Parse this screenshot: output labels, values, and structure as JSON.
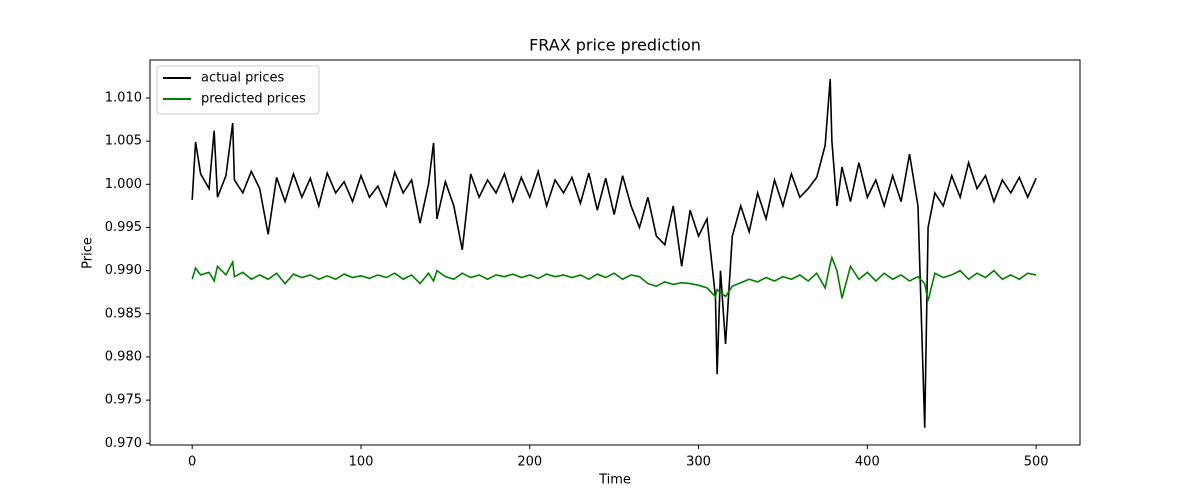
{
  "chart_data": {
    "type": "line",
    "title": "FRAX price prediction",
    "x_label": "Time",
    "y_label": "Price",
    "x": [
      0,
      2,
      5,
      10,
      13,
      15,
      20,
      24,
      25,
      30,
      35,
      40,
      45,
      50,
      55,
      60,
      65,
      70,
      75,
      80,
      85,
      90,
      95,
      100,
      105,
      110,
      115,
      120,
      125,
      130,
      135,
      140,
      143,
      145,
      150,
      155,
      160,
      165,
      170,
      175,
      180,
      185,
      190,
      195,
      200,
      205,
      210,
      215,
      220,
      225,
      230,
      235,
      240,
      245,
      250,
      255,
      260,
      265,
      270,
      275,
      280,
      285,
      290,
      295,
      300,
      305,
      310,
      311,
      313,
      316,
      320,
      325,
      330,
      335,
      340,
      345,
      350,
      355,
      360,
      365,
      370,
      375,
      378,
      379,
      382,
      385,
      390,
      395,
      400,
      405,
      410,
      415,
      420,
      425,
      430,
      434,
      436,
      440,
      445,
      450,
      455,
      460,
      465,
      470,
      475,
      480,
      485,
      490,
      495,
      500
    ],
    "series": [
      {
        "name": "actual prices",
        "color": "#000000",
        "values": [
          0.9982,
          1.0049,
          1.0012,
          0.9995,
          1.0062,
          0.9985,
          1.001,
          1.0071,
          1.0005,
          0.999,
          1.0015,
          0.9995,
          0.9942,
          1.0008,
          0.998,
          1.0012,
          0.9985,
          1.0007,
          0.9975,
          1.0013,
          0.999,
          1.0003,
          0.998,
          1.001,
          0.9985,
          0.9998,
          0.9975,
          1.0014,
          0.999,
          1.0005,
          0.9955,
          1.0,
          1.0048,
          0.996,
          1.0003,
          0.9975,
          0.9924,
          1.0012,
          0.9985,
          1.0005,
          0.999,
          1.0012,
          0.998,
          1.0008,
          0.9985,
          1.0015,
          0.9975,
          1.0005,
          0.999,
          1.0008,
          0.9978,
          1.0013,
          0.997,
          1.0007,
          0.9965,
          1.001,
          0.9975,
          0.995,
          0.9985,
          0.994,
          0.993,
          0.9975,
          0.9905,
          0.997,
          0.994,
          0.996,
          0.987,
          0.978,
          0.99,
          0.9815,
          0.994,
          0.9975,
          0.9945,
          0.999,
          0.996,
          1.0005,
          0.9975,
          1.0012,
          0.9985,
          0.9995,
          1.0008,
          1.0045,
          1.0122,
          1.005,
          0.9975,
          1.002,
          0.998,
          1.0025,
          0.9985,
          1.0005,
          0.9975,
          1.001,
          0.998,
          1.0035,
          0.9975,
          0.9718,
          0.995,
          0.999,
          0.9975,
          1.001,
          0.9985,
          1.0025,
          0.9995,
          1.001,
          0.998,
          1.0005,
          0.999,
          1.0008,
          0.9985,
          1.0007
        ]
      },
      {
        "name": "predicted prices",
        "color": "#008000",
        "values": [
          0.989,
          0.9903,
          0.9895,
          0.9898,
          0.9888,
          0.9905,
          0.9895,
          0.991,
          0.9893,
          0.9898,
          0.989,
          0.9895,
          0.989,
          0.9897,
          0.9885,
          0.9896,
          0.9892,
          0.9895,
          0.989,
          0.9894,
          0.989,
          0.9896,
          0.9892,
          0.9894,
          0.9891,
          0.9895,
          0.9892,
          0.9897,
          0.989,
          0.9895,
          0.9885,
          0.9897,
          0.9888,
          0.99,
          0.9893,
          0.989,
          0.9897,
          0.9892,
          0.9895,
          0.989,
          0.9895,
          0.9893,
          0.9896,
          0.9892,
          0.9895,
          0.9891,
          0.9896,
          0.9893,
          0.9895,
          0.9892,
          0.9895,
          0.989,
          0.9896,
          0.9892,
          0.9897,
          0.989,
          0.9895,
          0.9893,
          0.9885,
          0.9882,
          0.9887,
          0.9884,
          0.9886,
          0.9885,
          0.9883,
          0.988,
          0.987,
          0.9878,
          0.9875,
          0.987,
          0.9882,
          0.9886,
          0.989,
          0.9887,
          0.9892,
          0.9888,
          0.9893,
          0.989,
          0.9895,
          0.9888,
          0.9897,
          0.988,
          0.9908,
          0.9915,
          0.99,
          0.9868,
          0.9905,
          0.989,
          0.9898,
          0.9888,
          0.9897,
          0.989,
          0.9895,
          0.9888,
          0.9893,
          0.9885,
          0.9865,
          0.9897,
          0.9892,
          0.9895,
          0.99,
          0.989,
          0.9897,
          0.9892,
          0.99,
          0.989,
          0.9895,
          0.989,
          0.9897,
          0.9895
        ]
      }
    ],
    "xlim": [
      -25,
      526
    ],
    "ylim": [
      0.9698,
      1.0144
    ],
    "xticks": [
      0,
      100,
      200,
      300,
      400,
      500
    ],
    "yticks": [
      {
        "value": 0.97,
        "label": "0.970"
      },
      0.975,
      {
        "value": 0.98,
        "label": "0.980"
      },
      0.985,
      {
        "value": 0.99,
        "label": "0.990"
      },
      0.995,
      {
        "value": 1.0,
        "label": "1.000"
      },
      1.005,
      {
        "value": 1.01,
        "label": "1.010"
      }
    ],
    "legend": "upper left",
    "grid": false
  }
}
